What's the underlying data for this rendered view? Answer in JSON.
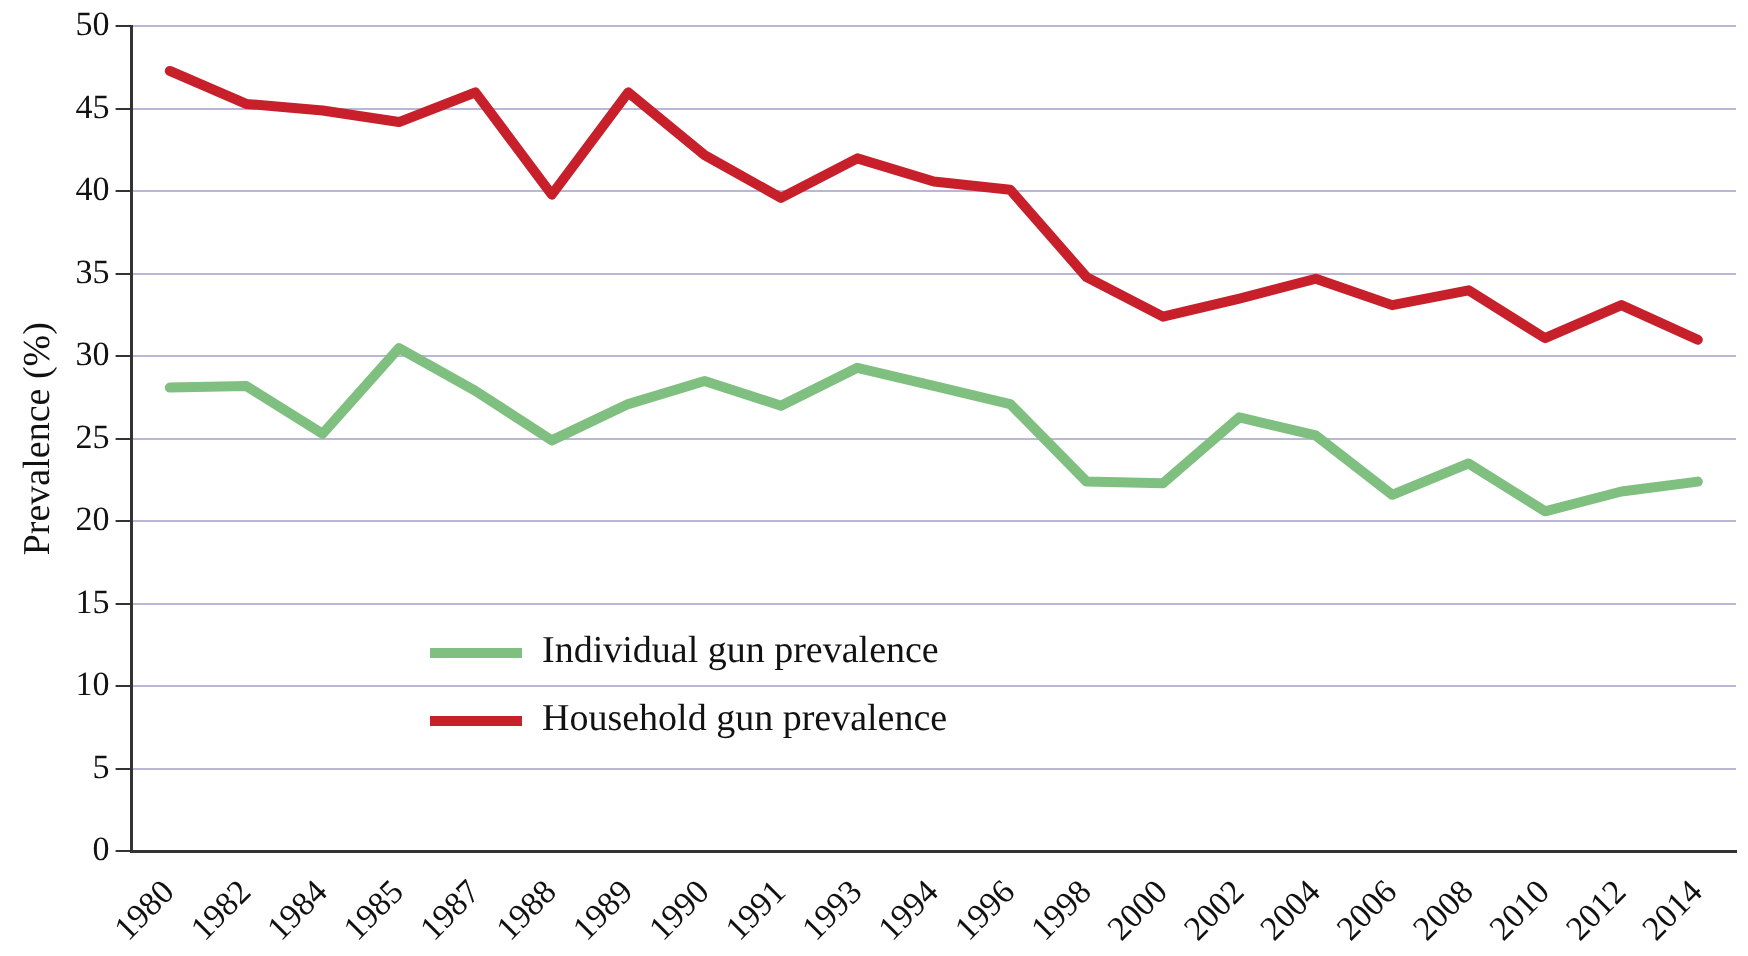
{
  "chart_data": {
    "type": "line",
    "ylabel": "Prevalence (%)",
    "categories": [
      "1980",
      "1982",
      "1984",
      "1985",
      "1987",
      "1988",
      "1989",
      "1990",
      "1991",
      "1993",
      "1994",
      "1996",
      "1998",
      "2000",
      "2002",
      "2004",
      "2006",
      "2008",
      "2010",
      "2012",
      "2014"
    ],
    "series": [
      {
        "name": "Individual gun prevalence",
        "color": "#7fbf7f",
        "values": [
          28.1,
          28.2,
          25.3,
          30.5,
          27.9,
          24.9,
          27.1,
          28.5,
          27.0,
          29.3,
          28.2,
          27.1,
          22.4,
          22.3,
          26.3,
          25.2,
          21.6,
          23.5,
          20.6,
          21.8,
          22.4
        ]
      },
      {
        "name": "Household gun prevalence",
        "color": "#c8202a",
        "values": [
          47.3,
          45.3,
          44.9,
          44.2,
          46.0,
          39.8,
          46.0,
          42.2,
          39.6,
          42.0,
          40.6,
          40.1,
          34.8,
          32.4,
          33.5,
          34.7,
          33.1,
          34.0,
          31.1,
          33.1,
          31.0
        ]
      }
    ],
    "ylim": [
      0,
      50
    ],
    "yticks": [
      0,
      5,
      10,
      15,
      20,
      25,
      30,
      35,
      40,
      45,
      50
    ],
    "grid": "y",
    "legend": "bottom left",
    "marker": "none",
    "line_style": "solid"
  }
}
